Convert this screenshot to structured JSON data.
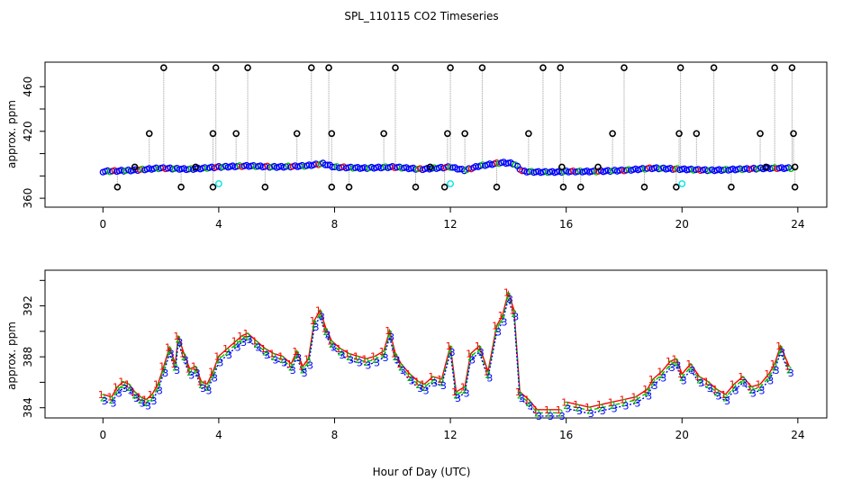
{
  "title": "SPL_110115  CO2 Timeseries",
  "xlabel": "Hour of Day (UTC)",
  "colors": {
    "series1": "#ff0000",
    "series2": "#00c000",
    "series3": "#0000ff",
    "outlier": "#000000",
    "flagged": "#00e5e5",
    "dropline": "#999999"
  },
  "chart_data": [
    {
      "type": "scatter",
      "panel": "top",
      "title": "SPL_110115  CO2 Timeseries",
      "xlabel": "Hour of Day (UTC)",
      "ylabel": "approx. ppm",
      "xlim": [
        -2,
        25
      ],
      "ylim": [
        352,
        482
      ],
      "xticks": [
        0,
        4,
        8,
        12,
        16,
        20,
        24
      ],
      "yticks": [
        360,
        380,
        400,
        420,
        440,
        460
      ],
      "ytick_labels": [
        "360",
        "",
        "",
        "420",
        "",
        "460"
      ],
      "baseline": [
        [
          0,
          384
        ],
        [
          1,
          385
        ],
        [
          2,
          387
        ],
        [
          3,
          386
        ],
        [
          4,
          388
        ],
        [
          5,
          389
        ],
        [
          6,
          388
        ],
        [
          7,
          389
        ],
        [
          7.6,
          391
        ],
        [
          8,
          388
        ],
        [
          9,
          387
        ],
        [
          10,
          388
        ],
        [
          11,
          386
        ],
        [
          12,
          388
        ],
        [
          12.5,
          385
        ],
        [
          13,
          389
        ],
        [
          13.8,
          392
        ],
        [
          14.2,
          391
        ],
        [
          14.5,
          384
        ],
        [
          15,
          383.5
        ],
        [
          15.6,
          383.5
        ],
        [
          16,
          384
        ],
        [
          17,
          384
        ],
        [
          18,
          385
        ],
        [
          19,
          387
        ],
        [
          20,
          386
        ],
        [
          21,
          385
        ],
        [
          22,
          386
        ],
        [
          23,
          387
        ],
        [
          23.8,
          387
        ]
      ],
      "high_outliers": [
        [
          1.1,
          388
        ],
        [
          1.6,
          418
        ],
        [
          2.1,
          477
        ],
        [
          3.2,
          388
        ],
        [
          3.8,
          418
        ],
        [
          3.9,
          477
        ],
        [
          4.6,
          418
        ],
        [
          5.0,
          477
        ],
        [
          6.7,
          418
        ],
        [
          7.2,
          477
        ],
        [
          7.8,
          477
        ],
        [
          7.9,
          418
        ],
        [
          9.7,
          418
        ],
        [
          10.1,
          477
        ],
        [
          11.3,
          388
        ],
        [
          11.9,
          418
        ],
        [
          12.0,
          477
        ],
        [
          12.5,
          418
        ],
        [
          13.1,
          477
        ],
        [
          14.7,
          418
        ],
        [
          15.2,
          477
        ],
        [
          15.8,
          477
        ],
        [
          15.85,
          388
        ],
        [
          17.1,
          388
        ],
        [
          17.6,
          418
        ],
        [
          18.0,
          477
        ],
        [
          19.9,
          418
        ],
        [
          19.95,
          477
        ],
        [
          20.5,
          418
        ],
        [
          21.1,
          477
        ],
        [
          22.7,
          418
        ],
        [
          22.9,
          388
        ],
        [
          23.2,
          477
        ],
        [
          23.8,
          477
        ],
        [
          23.85,
          418
        ],
        [
          23.9,
          388
        ]
      ],
      "low_outliers": [
        [
          0.5,
          370
        ],
        [
          2.7,
          370
        ],
        [
          3.8,
          370
        ],
        [
          5.6,
          370
        ],
        [
          7.9,
          370
        ],
        [
          8.5,
          370
        ],
        [
          10.8,
          370
        ],
        [
          11.8,
          370
        ],
        [
          13.6,
          370
        ],
        [
          15.9,
          370
        ],
        [
          16.5,
          370
        ],
        [
          18.7,
          370
        ],
        [
          19.8,
          370
        ],
        [
          21.7,
          370
        ],
        [
          23.9,
          370
        ]
      ],
      "flagged_points": [
        [
          4.0,
          373
        ],
        [
          12.0,
          373
        ],
        [
          20.0,
          373
        ]
      ]
    },
    {
      "type": "line",
      "panel": "bottom",
      "xlabel": "Hour of Day (UTC)",
      "ylabel": "approx. ppm",
      "xlim": [
        -2,
        25
      ],
      "ylim": [
        383.2,
        394.8
      ],
      "xticks": [
        0,
        4,
        8,
        12,
        16,
        20,
        24
      ],
      "yticks": [
        384,
        386,
        388,
        390,
        392,
        394
      ],
      "ytick_labels": [
        "384",
        "",
        "388",
        "",
        "392",
        ""
      ],
      "series": [
        {
          "name": "1",
          "marker": "1"
        },
        {
          "name": "2",
          "marker": "2"
        },
        {
          "name": "3",
          "marker": "3"
        }
      ],
      "x": [
        0,
        0.3,
        0.5,
        0.7,
        0.9,
        1.1,
        1.3,
        1.5,
        1.7,
        1.9,
        2.1,
        2.3,
        2.5,
        2.6,
        2.8,
        3.0,
        3.2,
        3.4,
        3.6,
        3.8,
        4.0,
        4.3,
        4.6,
        4.8,
        5.0,
        5.3,
        5.6,
        5.9,
        6.2,
        6.5,
        6.7,
        6.9,
        7.1,
        7.3,
        7.5,
        7.7,
        7.9,
        8.2,
        8.5,
        8.8,
        9.1,
        9.4,
        9.7,
        9.9,
        10.1,
        10.3,
        10.6,
        10.9,
        11.1,
        11.4,
        11.7,
        12.0,
        12.2,
        12.5,
        12.7,
        13.0,
        13.3,
        13.6,
        13.8,
        14.0,
        14.2,
        14.4,
        14.7,
        15.0,
        15.4,
        15.8,
        16.0,
        16.4,
        16.8,
        17.2,
        17.6,
        18.0,
        18.4,
        18.8,
        19.0,
        19.3,
        19.6,
        19.8,
        20.0,
        20.3,
        20.6,
        20.9,
        21.2,
        21.5,
        21.8,
        22.1,
        22.4,
        22.7,
        23.0,
        23.2,
        23.4,
        23.7
      ],
      "values": [
        384.8,
        384.6,
        385.4,
        385.8,
        385.6,
        385.0,
        384.6,
        384.4,
        384.8,
        385.6,
        387.0,
        388.5,
        387.2,
        389.4,
        388.0,
        386.8,
        387.0,
        385.8,
        385.6,
        386.6,
        387.8,
        388.4,
        389.0,
        389.4,
        389.6,
        389.0,
        388.4,
        388.0,
        387.8,
        387.2,
        388.2,
        387.0,
        387.6,
        390.6,
        391.4,
        390.0,
        389.0,
        388.4,
        388.0,
        387.8,
        387.6,
        387.8,
        388.2,
        389.8,
        388.0,
        387.2,
        386.4,
        385.8,
        385.6,
        386.2,
        386.0,
        388.6,
        385.0,
        385.4,
        388.0,
        388.6,
        386.6,
        390.2,
        391.0,
        392.8,
        391.4,
        385.0,
        384.4,
        383.6,
        383.6,
        383.6,
        384.2,
        384.0,
        383.8,
        384.0,
        384.2,
        384.4,
        384.6,
        385.2,
        386.0,
        386.6,
        387.4,
        387.6,
        386.4,
        387.2,
        386.2,
        385.8,
        385.2,
        384.8,
        385.6,
        386.2,
        385.4,
        385.6,
        386.4,
        387.2,
        388.6,
        387.0
      ]
    }
  ]
}
